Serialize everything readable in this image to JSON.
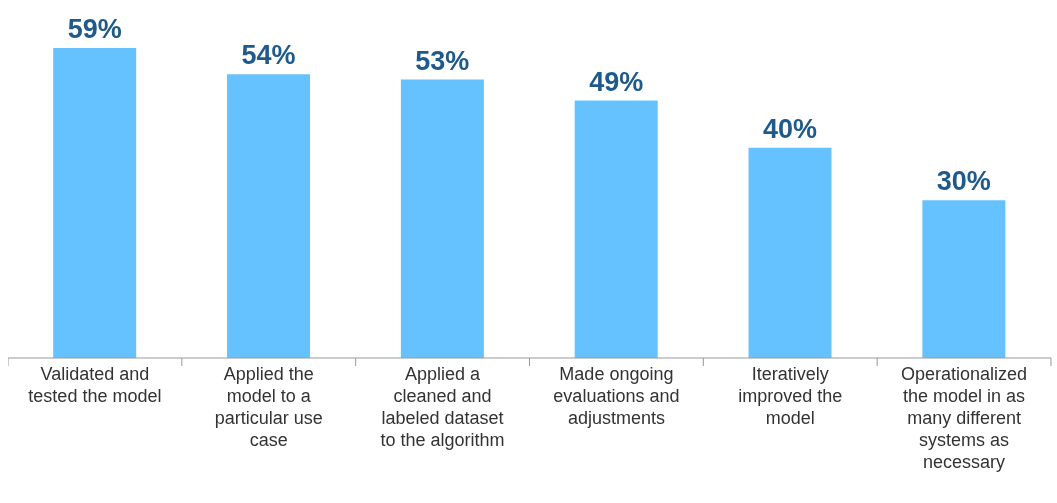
{
  "chart_data": {
    "type": "bar",
    "categories": [
      "Validated and tested the model",
      "Applied the model to a particular use case",
      "Applied a cleaned and labeled dataset to the algorithm",
      "Made ongoing evaluations and adjustments",
      "Iteratively improved the model",
      "Operationalized the model in as many different systems as necessary"
    ],
    "values": [
      59,
      54,
      53,
      49,
      40,
      30
    ],
    "color": "#66c2ff",
    "value_labels": [
      "59%",
      "54%",
      "53%",
      "49%",
      "40%",
      "30%"
    ],
    "grid": false,
    "legend": false
  }
}
